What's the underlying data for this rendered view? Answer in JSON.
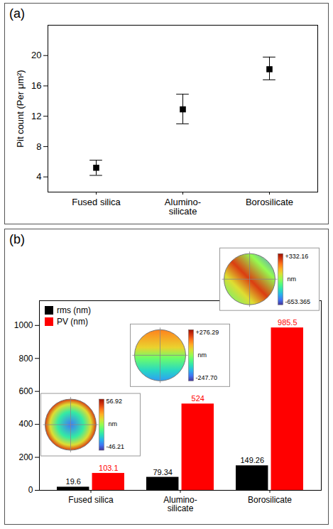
{
  "chart_data": [
    {
      "type": "scatter",
      "panel": "(a)",
      "y_label": "Pit count (Per μm²)",
      "categories": [
        "Fused silica",
        "Alumino-silicate",
        "Borosilicate"
      ],
      "values": [
        5.2,
        12.9,
        18.2
      ],
      "error_bar_bottom": [
        4.2,
        11.0,
        16.8
      ],
      "error_bar_top": [
        6.2,
        14.9,
        19.8
      ],
      "ylim": [
        2,
        24
      ],
      "yticks": [
        4,
        8,
        12,
        16,
        20
      ],
      "marker": "square",
      "color": "#000000"
    },
    {
      "type": "bar",
      "panel": "(b)",
      "categories": [
        "Fused silica",
        "Alumino-silicate",
        "Borosilicate"
      ],
      "series": [
        {
          "name": "rms (nm)",
          "color": "#000000",
          "values": [
            19.6,
            79.34,
            149.26
          ]
        },
        {
          "name": "PV (nm)",
          "color": "#ff0000",
          "values": [
            103.1,
            524,
            985.5
          ]
        }
      ],
      "ylim": [
        0,
        1150
      ],
      "yticks": [
        0,
        200,
        400,
        600,
        800,
        1000
      ],
      "data_labels": true,
      "legend": "top-left",
      "surface_maps": [
        {
          "category": "Fused silica",
          "unit": "nm",
          "scale": [
            {
              "value": 56.92,
              "label": "56.92"
            },
            {
              "value": -46.21,
              "label": "-46.21"
            }
          ]
        },
        {
          "category": "Alumino-silicate",
          "unit": "nm",
          "scale": [
            {
              "value": 276.29,
              "label": "+276.29"
            },
            {
              "value": -247.7,
              "label": "-247.70"
            }
          ]
        },
        {
          "category": "Borosilicate",
          "unit": "nm",
          "scale": [
            {
              "value": 332.16,
              "label": "+332.16"
            },
            {
              "value": -653.365,
              "label": "-653.365"
            }
          ]
        }
      ]
    }
  ]
}
